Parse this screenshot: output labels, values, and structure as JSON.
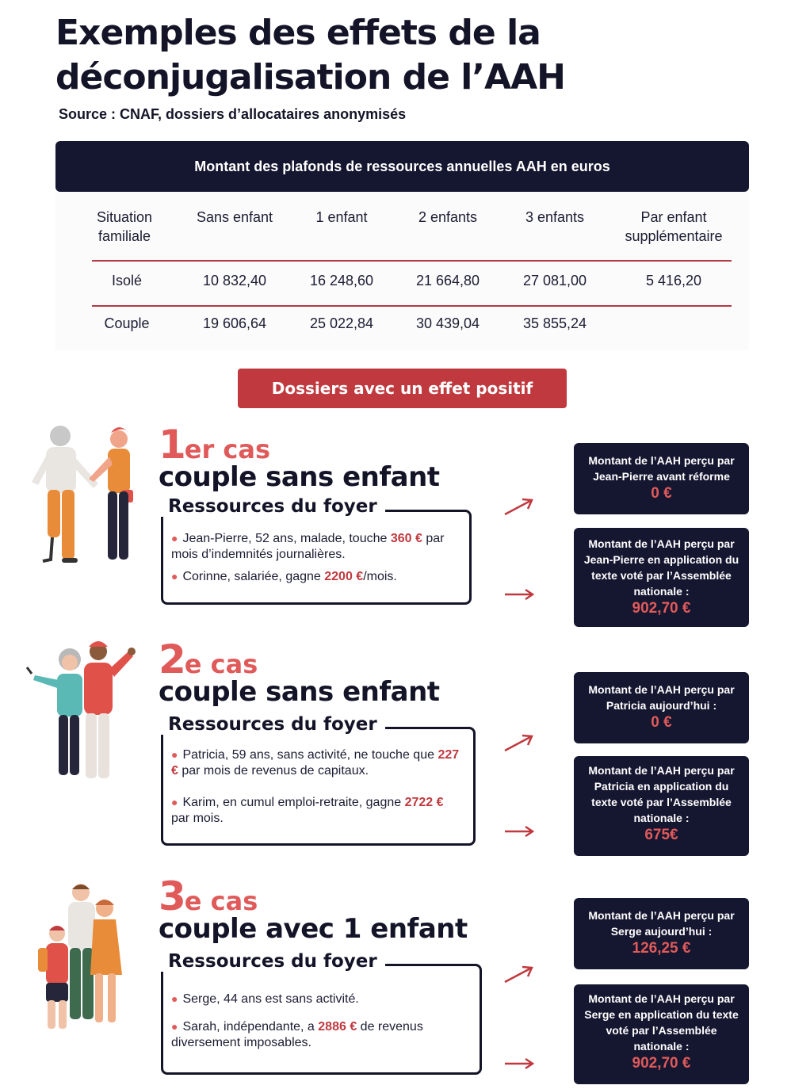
{
  "title": "Exemples des effets de la déconjugalisation de l’AAH",
  "source": "Source : CNAF, dossiers d’allocataires anonymisés",
  "table": {
    "header": "Montant des plafonds de ressources annuelles AAH en euros",
    "columns": [
      "Situation familiale",
      "Sans enfant",
      "1 enfant",
      "2 enfants",
      "3 enfants",
      "Par enfant supplémentaire"
    ],
    "rows": [
      {
        "label": "Isolé",
        "values": [
          "10 832,40",
          "16 248,60",
          "21 664,80",
          "27 081,00",
          "5 416,20"
        ]
      },
      {
        "label": "Couple",
        "values": [
          "19 606,64",
          "25 022,84",
          "30 439,04",
          "35 855,24",
          ""
        ]
      }
    ]
  },
  "section_label": "Dossiers avec un effet positif",
  "cases": [
    {
      "num": "1",
      "suffix": "er cas",
      "subtitle": "couple sans enfant",
      "resources_title": "Ressources du foyer",
      "items": [
        {
          "before": "Jean-Pierre, 52 ans, malade, touche ",
          "amount": "360 €",
          "after": " par mois d’indemnités journalières."
        },
        {
          "before": "Corinne, salariée, gagne ",
          "amount": "2200 €",
          "after": "/mois."
        }
      ],
      "cards": [
        {
          "text": "Montant de l’AAH perçu par Jean-Pierre avant réforme",
          "amount": "0 €"
        },
        {
          "text": "Montant de l’AAH perçu par Jean-Pierre en application du texte voté par l’Assemblée nationale :",
          "amount": "902,70 €"
        }
      ]
    },
    {
      "num": "2",
      "suffix": "e cas",
      "subtitle": "couple sans enfant",
      "resources_title": "Ressources du foyer",
      "items": [
        {
          "before": "Patricia, 59 ans, sans activité, ne touche que ",
          "amount": "227 €",
          "after": " par mois  de revenus de capitaux."
        },
        {
          "before": "Karim, en cumul emploi-retraite, gagne ",
          "amount": "2722 €",
          "after": " par mois."
        }
      ],
      "cards": [
        {
          "text": "Montant de l’AAH perçu par Patricia aujourd’hui :",
          "amount": "0 €"
        },
        {
          "text": "Montant de l’AAH perçu par Patricia en application du texte voté par l’Assemblée nationale :",
          "amount": "675€"
        }
      ]
    },
    {
      "num": "3",
      "suffix": "e cas",
      "subtitle": "couple avec 1 enfant",
      "resources_title": "Ressources du foyer",
      "items": [
        {
          "before": "Serge, 44 ans est sans activité.",
          "amount": "",
          "after": ""
        },
        {
          "before": "Sarah, indépendante, a ",
          "amount": "2886 €",
          "after": " de revenus diversement imposables."
        }
      ],
      "cards": [
        {
          "text": "Montant de l’AAH perçu par Serge aujourd’hui :",
          "amount": "126,25 €"
        },
        {
          "text": "Montant de l’AAH perçu par Serge en application du texte voté par l’Assemblée nationale :",
          "amount": "902,70 €"
        }
      ]
    }
  ],
  "colors": {
    "navy": "#151630",
    "red": "#c0393f",
    "coral": "#e05a5a"
  }
}
